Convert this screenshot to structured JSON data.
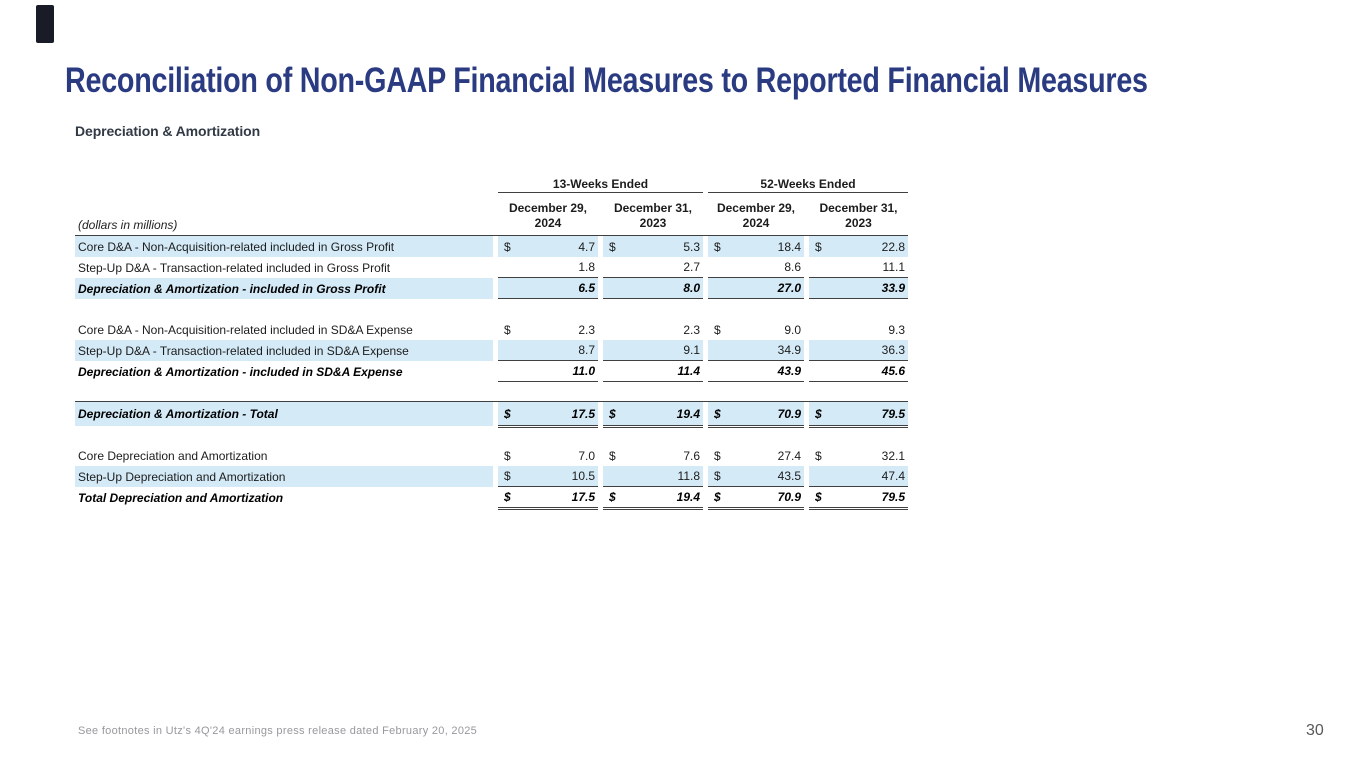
{
  "slide": {
    "title": "Reconciliation of Non-GAAP Financial Measures to Reported Financial Measures",
    "subtitle": "Depreciation & Amortization",
    "footnote": "See footnotes in Utz's 4Q'24 earnings press release dated February 20, 2025",
    "page_number": "30"
  },
  "colors": {
    "title_navy": "#2a3b82",
    "row_highlight_blue": "#d4eaf7",
    "rule_line": "#404040",
    "corner_mark": "#191b26"
  },
  "table": {
    "units_label": "(dollars in millions)",
    "col_groups": [
      {
        "label": "13-Weeks Ended"
      },
      {
        "label": "52-Weeks Ended"
      }
    ],
    "col_headers": [
      {
        "line1": "December 29,",
        "line2": "2024"
      },
      {
        "line1": "December 31,",
        "line2": "2023"
      },
      {
        "line1": "December 29,",
        "line2": "2024"
      },
      {
        "line1": "December 31,",
        "line2": "2023"
      }
    ],
    "rows": [
      {
        "label": "Core D&A - Non-Acquisition-related included in Gross Profit",
        "cells": [
          {
            "d": "$",
            "v": "4.7"
          },
          {
            "d": "$",
            "v": "5.3"
          },
          {
            "d": "$",
            "v": "18.4"
          },
          {
            "d": "$",
            "v": "22.8"
          }
        ]
      },
      {
        "label": "Step-Up D&A - Transaction-related included in Gross Profit",
        "cells": [
          {
            "d": "",
            "v": "1.8"
          },
          {
            "d": "",
            "v": "2.7"
          },
          {
            "d": "",
            "v": "8.6"
          },
          {
            "d": "",
            "v": "11.1"
          }
        ]
      },
      {
        "label": "Depreciation & Amortization - included in Gross Profit",
        "cells": [
          {
            "d": "",
            "v": "6.5"
          },
          {
            "d": "",
            "v": "8.0"
          },
          {
            "d": "",
            "v": "27.0"
          },
          {
            "d": "",
            "v": "33.9"
          }
        ]
      },
      {
        "label": "Core D&A - Non-Acquisition-related included in SD&A Expense",
        "cells": [
          {
            "d": "$",
            "v": "2.3"
          },
          {
            "d": "",
            "v": "2.3"
          },
          {
            "d": "$",
            "v": "9.0"
          },
          {
            "d": "",
            "v": "9.3"
          }
        ]
      },
      {
        "label": "Step-Up D&A - Transaction-related included in SD&A Expense",
        "cells": [
          {
            "d": "",
            "v": "8.7"
          },
          {
            "d": "",
            "v": "9.1"
          },
          {
            "d": "",
            "v": "34.9"
          },
          {
            "d": "",
            "v": "36.3"
          }
        ]
      },
      {
        "label": "Depreciation & Amortization - included in SD&A Expense",
        "cells": [
          {
            "d": "",
            "v": "11.0"
          },
          {
            "d": "",
            "v": "11.4"
          },
          {
            "d": "",
            "v": "43.9"
          },
          {
            "d": "",
            "v": "45.6"
          }
        ]
      },
      {
        "label": "Depreciation & Amortization - Total",
        "cells": [
          {
            "d": "$",
            "v": "17.5"
          },
          {
            "d": "$",
            "v": "19.4"
          },
          {
            "d": "$",
            "v": "70.9"
          },
          {
            "d": "$",
            "v": "79.5"
          }
        ]
      },
      {
        "label": "Core Depreciation and Amortization",
        "cells": [
          {
            "d": "$",
            "v": "7.0"
          },
          {
            "d": "$",
            "v": "7.6"
          },
          {
            "d": "$",
            "v": "27.4"
          },
          {
            "d": "$",
            "v": "32.1"
          }
        ]
      },
      {
        "label": "Step-Up Depreciation and Amortization",
        "cells": [
          {
            "d": "$",
            "v": "10.5"
          },
          {
            "d": "",
            "v": "11.8"
          },
          {
            "d": "$",
            "v": "43.5"
          },
          {
            "d": "",
            "v": "47.4"
          }
        ]
      },
      {
        "label": "Total Depreciation and Amortization",
        "cells": [
          {
            "d": "$",
            "v": "17.5"
          },
          {
            "d": "$",
            "v": "19.4"
          },
          {
            "d": "$",
            "v": "70.9"
          },
          {
            "d": "$",
            "v": "79.5"
          }
        ]
      }
    ]
  }
}
